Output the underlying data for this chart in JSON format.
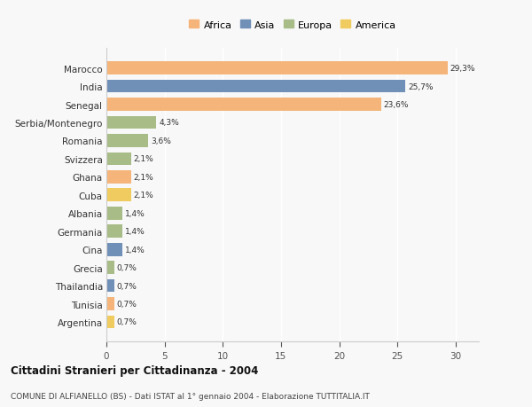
{
  "categories": [
    "Marocco",
    "India",
    "Senegal",
    "Serbia/Montenegro",
    "Romania",
    "Svizzera",
    "Ghana",
    "Cuba",
    "Albania",
    "Germania",
    "Cina",
    "Grecia",
    "Thailandia",
    "Tunisia",
    "Argentina"
  ],
  "values": [
    29.3,
    25.7,
    23.6,
    4.3,
    3.6,
    2.1,
    2.1,
    2.1,
    1.4,
    1.4,
    1.4,
    0.7,
    0.7,
    0.7,
    0.7
  ],
  "labels": [
    "29,3%",
    "25,7%",
    "23,6%",
    "4,3%",
    "3,6%",
    "2,1%",
    "2,1%",
    "2,1%",
    "1,4%",
    "1,4%",
    "1,4%",
    "0,7%",
    "0,7%",
    "0,7%",
    "0,7%"
  ],
  "colors": [
    "#F5B57A",
    "#7090B8",
    "#F5B57A",
    "#A8BC88",
    "#A8BC88",
    "#A8BC88",
    "#F5B57A",
    "#F0CC60",
    "#A8BC88",
    "#A8BC88",
    "#7090B8",
    "#A8BC88",
    "#7090B8",
    "#F5B57A",
    "#F0CC60"
  ],
  "legend_labels": [
    "Africa",
    "Asia",
    "Europa",
    "America"
  ],
  "legend_colors": [
    "#F5B57A",
    "#7090B8",
    "#A8BC88",
    "#F0CC60"
  ],
  "xlim": [
    0,
    32
  ],
  "xticks": [
    0,
    5,
    10,
    15,
    20,
    25,
    30
  ],
  "title": "Cittadini Stranieri per Cittadinanza - 2004",
  "subtitle": "COMUNE DI ALFIANELLO (BS) - Dati ISTAT al 1° gennaio 2004 - Elaborazione TUTTITALIA.IT",
  "bg_color": "#f8f8f8",
  "bar_height": 0.72
}
